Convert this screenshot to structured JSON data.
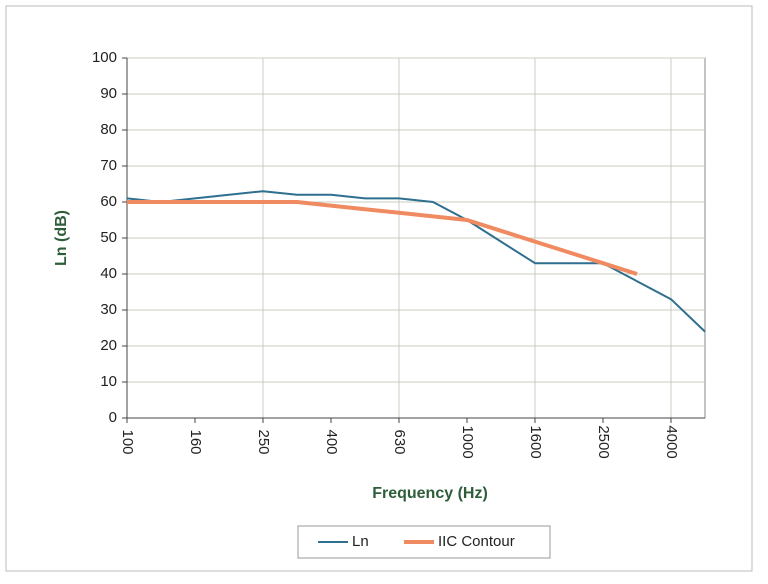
{
  "chart_data": {
    "type": "line",
    "xlabel": "Frequency (Hz)",
    "ylabel": "Ln (dB)",
    "categories": [
      "100",
      null,
      "160",
      null,
      "250",
      null,
      "400",
      null,
      "630",
      null,
      "1000",
      null,
      "1600",
      null,
      "2500",
      null,
      "4000",
      null
    ],
    "series": [
      {
        "name": "Ln",
        "color": "#2f6f8f",
        "values": [
          61,
          60,
          61,
          62,
          63,
          62,
          62,
          61,
          61,
          60,
          55,
          49,
          43,
          43,
          43,
          38,
          33,
          24
        ]
      },
      {
        "name": "IIC Contour",
        "color": "#f08a60",
        "values": [
          60,
          60,
          60,
          60,
          60,
          60,
          59,
          58,
          57,
          56,
          55,
          52,
          49,
          46,
          43,
          40,
          null,
          null
        ]
      }
    ],
    "ylim": [
      0,
      100
    ],
    "yticks": [
      0,
      10,
      20,
      30,
      40,
      50,
      60,
      70,
      80,
      90,
      100
    ],
    "grid": true,
    "legend": "bottom"
  }
}
